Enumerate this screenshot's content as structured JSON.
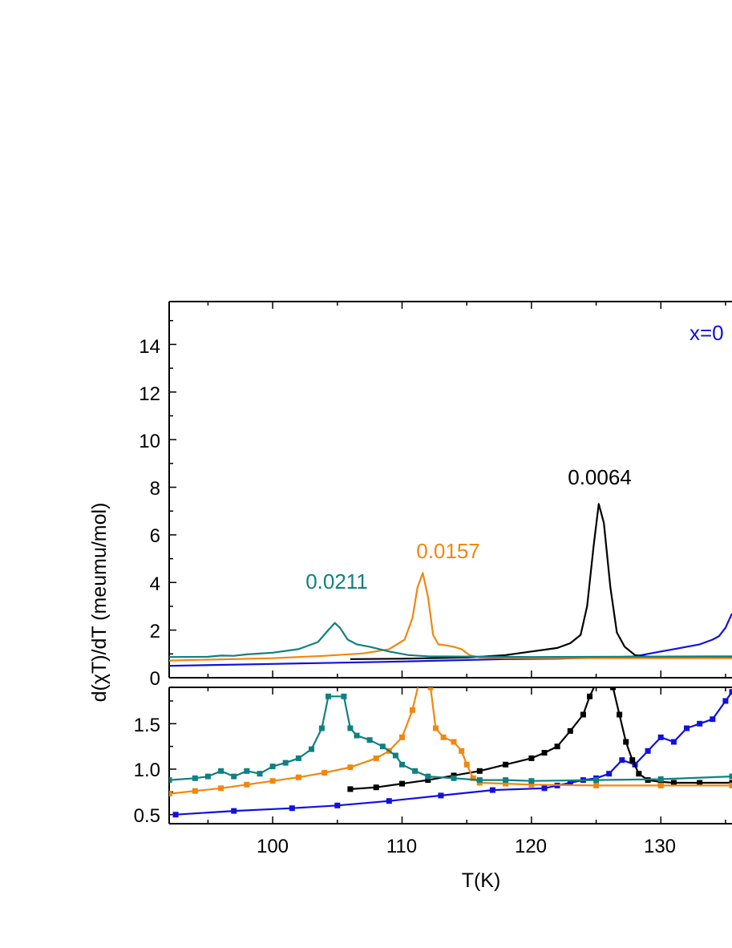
{
  "chart_data": [
    {
      "panel": "top",
      "type": "line",
      "xlabel": "T(K)",
      "ylabel": "d(χT)/dT (meumu/mol)",
      "xlim": [
        92,
        135.5
      ],
      "ylim": [
        0,
        15.8
      ],
      "x_ticks": [
        "100",
        "110",
        "120",
        "130"
      ],
      "y_ticks": [
        "0",
        "2",
        "4",
        "6",
        "8",
        "10",
        "12",
        "14"
      ],
      "annotations": [
        {
          "text": "x=0",
          "color": "#1010e0",
          "series": "blue"
        },
        {
          "text": "0.0064",
          "color": "#000000",
          "series": "black"
        },
        {
          "text": "0.0157",
          "color": "#f0870f",
          "series": "orange"
        },
        {
          "text": "0.0211",
          "color": "#108080",
          "series": "teal"
        }
      ],
      "series": [
        {
          "id": "blue",
          "color": "#1010e0",
          "x": [
            92,
            100,
            110,
            118,
            122,
            126,
            128,
            129,
            130,
            131,
            132,
            133,
            134,
            134.5,
            135,
            135.5
          ],
          "y": [
            0.5,
            0.58,
            0.68,
            0.78,
            0.8,
            0.85,
            0.9,
            1.0,
            1.1,
            1.2,
            1.3,
            1.4,
            1.6,
            1.75,
            2.1,
            2.7
          ]
        },
        {
          "id": "black",
          "color": "#000000",
          "x": [
            106,
            110,
            115,
            118,
            120,
            122,
            123,
            123.8,
            124.3,
            124.8,
            125.2,
            125.6,
            126.1,
            126.6,
            127.2,
            128,
            129,
            131,
            135.5
          ],
          "y": [
            0.78,
            0.8,
            0.85,
            0.95,
            1.1,
            1.25,
            1.45,
            1.8,
            3.0,
            5.5,
            7.3,
            6.5,
            3.8,
            1.9,
            1.3,
            0.95,
            0.88,
            0.86,
            0.86
          ]
        },
        {
          "id": "orange",
          "color": "#f0870f",
          "x": [
            92,
            96,
            100,
            104,
            107,
            109,
            110.2,
            110.8,
            111.2,
            111.6,
            112,
            112.4,
            112.8,
            113.5,
            114,
            114.6,
            115.2,
            116,
            118,
            125,
            135.5
          ],
          "y": [
            0.72,
            0.77,
            0.82,
            0.92,
            1.02,
            1.2,
            1.6,
            2.5,
            3.8,
            4.4,
            3.4,
            1.8,
            1.4,
            1.35,
            1.3,
            1.2,
            0.95,
            0.85,
            0.83,
            0.82,
            0.82
          ]
        },
        {
          "id": "teal",
          "color": "#108080",
          "x": [
            92,
            95,
            96,
            97,
            98,
            100,
            102,
            103.5,
            104.3,
            104.8,
            105.2,
            105.8,
            106.5,
            107.5,
            109,
            110.5,
            112,
            120,
            135.5
          ],
          "y": [
            0.87,
            0.88,
            0.93,
            0.92,
            0.98,
            1.05,
            1.2,
            1.5,
            2.0,
            2.3,
            2.1,
            1.6,
            1.4,
            1.3,
            1.1,
            0.95,
            0.9,
            0.87,
            0.9
          ]
        }
      ]
    },
    {
      "panel": "bottom",
      "type": "line",
      "xlabel": "T(K)",
      "ylabel": "d(χT)/dT (meumu/mol)",
      "xlim": [
        92,
        135.5
      ],
      "ylim": [
        0.4,
        1.9
      ],
      "x_ticks": [
        "100",
        "110",
        "120",
        "130"
      ],
      "y_ticks": [
        "0.5",
        "1.0",
        "1.5"
      ],
      "series": [
        {
          "id": "blue",
          "color": "#1010e0",
          "marker": "square",
          "x": [
            92.5,
            97,
            101.5,
            105,
            109,
            113,
            117,
            121,
            122,
            123,
            124,
            125,
            126,
            127,
            128,
            129,
            130,
            131,
            132,
            133,
            134,
            135,
            135.5
          ],
          "y": [
            0.5,
            0.54,
            0.57,
            0.6,
            0.65,
            0.71,
            0.77,
            0.79,
            0.82,
            0.85,
            0.88,
            0.9,
            0.95,
            1.1,
            1.05,
            1.2,
            1.35,
            1.3,
            1.45,
            1.5,
            1.55,
            1.75,
            1.85
          ]
        },
        {
          "id": "black",
          "color": "#000000",
          "marker": "square",
          "x": [
            106,
            108,
            110,
            112,
            114,
            116,
            118,
            120,
            121,
            122,
            123,
            124,
            124.5,
            125,
            126.3,
            126.8,
            127.3,
            127.8,
            128.3,
            129,
            130,
            131,
            133,
            135.5
          ],
          "y": [
            0.78,
            0.8,
            0.84,
            0.88,
            0.93,
            0.98,
            1.05,
            1.12,
            1.18,
            1.25,
            1.42,
            1.6,
            1.8,
            1.95,
            1.9,
            1.6,
            1.3,
            1.1,
            0.95,
            0.88,
            0.86,
            0.85,
            0.85,
            0.85
          ]
        },
        {
          "id": "orange",
          "color": "#f0870f",
          "marker": "square",
          "x": [
            92,
            94,
            96,
            98,
            100,
            102,
            104,
            106,
            108,
            109,
            110,
            110.8,
            111.3,
            112.2,
            112.6,
            113.2,
            114,
            114.6,
            115,
            115.5,
            116,
            118,
            120,
            125,
            130,
            135.5
          ],
          "y": [
            0.73,
            0.76,
            0.79,
            0.83,
            0.87,
            0.91,
            0.96,
            1.02,
            1.12,
            1.2,
            1.35,
            1.65,
            1.95,
            1.9,
            1.45,
            1.35,
            1.3,
            1.2,
            1.05,
            0.9,
            0.85,
            0.84,
            0.83,
            0.82,
            0.82,
            0.82
          ]
        },
        {
          "id": "teal",
          "color": "#108080",
          "marker": "square",
          "x": [
            92,
            94,
            95,
            96,
            97,
            98,
            99,
            100,
            101,
            102,
            103,
            103.8,
            104.3,
            105.5,
            106,
            106.5,
            107.5,
            108.5,
            109.5,
            110,
            111,
            112,
            114,
            116,
            118,
            120,
            125,
            130,
            135.5
          ],
          "y": [
            0.88,
            0.9,
            0.92,
            0.98,
            0.92,
            0.98,
            0.95,
            1.03,
            1.07,
            1.12,
            1.22,
            1.45,
            1.8,
            1.8,
            1.45,
            1.37,
            1.32,
            1.25,
            1.15,
            1.05,
            0.98,
            0.92,
            0.9,
            0.88,
            0.88,
            0.87,
            0.88,
            0.89,
            0.92
          ]
        }
      ]
    }
  ]
}
